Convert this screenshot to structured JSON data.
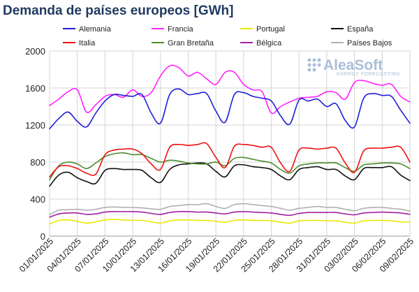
{
  "chart_data": {
    "type": "line",
    "title": "Demanda de países europeos [GWh]",
    "ylim": [
      0,
      2000
    ],
    "yticks": [
      0,
      400,
      800,
      1200,
      1600,
      2000
    ],
    "x_tick_labels": [
      "01/01/2025",
      "04/01/2025",
      "07/01/2025",
      "10/01/2025",
      "13/01/2025",
      "16/01/2025",
      "19/01/2025",
      "22/01/2025",
      "25/01/2025",
      "28/01/2025",
      "31/01/2025",
      "03/02/2025",
      "06/02/2025",
      "09/02/2025"
    ],
    "x_days": [
      1,
      2,
      3,
      4,
      5,
      6,
      7,
      8,
      9,
      10,
      11,
      12,
      13,
      14,
      15,
      16,
      17,
      18,
      19,
      20,
      21,
      22,
      23,
      24,
      25,
      26,
      27,
      28,
      29,
      30,
      31,
      32,
      33,
      34,
      35,
      36,
      37,
      38,
      39,
      40
    ],
    "watermark": {
      "main": "AleaSoft",
      "sub": "ENERGY FORECASTING"
    },
    "series": [
      {
        "name": "Alemania",
        "color": "#1f1fd6",
        "values": [
          1160,
          1270,
          1340,
          1240,
          1180,
          1330,
          1460,
          1530,
          1520,
          1510,
          1530,
          1330,
          1220,
          1530,
          1590,
          1530,
          1540,
          1540,
          1350,
          1230,
          1530,
          1550,
          1510,
          1490,
          1460,
          1300,
          1210,
          1470,
          1460,
          1480,
          1400,
          1430,
          1250,
          1180,
          1490,
          1540,
          1520,
          1510,
          1360,
          1220
        ]
      },
      {
        "name": "Francia",
        "color": "#ff22ff",
        "values": [
          1410,
          1480,
          1560,
          1580,
          1340,
          1420,
          1510,
          1530,
          1500,
          1580,
          1510,
          1550,
          1730,
          1840,
          1820,
          1730,
          1770,
          1700,
          1640,
          1770,
          1770,
          1640,
          1580,
          1560,
          1330,
          1400,
          1450,
          1490,
          1500,
          1510,
          1560,
          1550,
          1480,
          1660,
          1680,
          1650,
          1630,
          1640,
          1510,
          1450
        ]
      },
      {
        "name": "Portugal",
        "color": "#e8e800",
        "values": [
          130,
          170,
          175,
          160,
          140,
          155,
          175,
          180,
          175,
          170,
          170,
          155,
          140,
          165,
          175,
          175,
          170,
          170,
          160,
          150,
          170,
          175,
          170,
          170,
          165,
          150,
          140,
          165,
          170,
          170,
          165,
          165,
          150,
          140,
          165,
          170,
          170,
          165,
          155,
          150
        ]
      },
      {
        "name": "España",
        "color": "#111111",
        "values": [
          540,
          660,
          690,
          630,
          590,
          570,
          710,
          730,
          720,
          720,
          710,
          630,
          580,
          720,
          770,
          780,
          790,
          780,
          700,
          640,
          760,
          770,
          750,
          740,
          720,
          650,
          610,
          720,
          740,
          750,
          720,
          720,
          650,
          610,
          730,
          740,
          740,
          750,
          660,
          600
        ]
      },
      {
        "name": "Italia",
        "color": "#ee1111",
        "values": [
          640,
          750,
          760,
          730,
          680,
          670,
          880,
          930,
          940,
          940,
          890,
          780,
          720,
          960,
          990,
          980,
          990,
          1000,
          850,
          740,
          970,
          990,
          980,
          960,
          960,
          790,
          700,
          930,
          950,
          940,
          950,
          950,
          790,
          690,
          920,
          950,
          950,
          960,
          960,
          800
        ]
      },
      {
        "name": "Gran Bretaña",
        "color": "#4d8b2e",
        "values": [
          610,
          760,
          800,
          780,
          730,
          790,
          860,
          890,
          900,
          880,
          880,
          840,
          800,
          820,
          810,
          790,
          780,
          780,
          800,
          760,
          840,
          850,
          830,
          810,
          790,
          720,
          680,
          760,
          780,
          790,
          790,
          790,
          740,
          700,
          770,
          780,
          790,
          790,
          780,
          730
        ]
      },
      {
        "name": "Bélgica",
        "color": "#a020a0",
        "values": [
          205,
          240,
          250,
          250,
          235,
          240,
          260,
          265,
          265,
          265,
          260,
          245,
          235,
          255,
          265,
          265,
          260,
          260,
          250,
          240,
          260,
          265,
          260,
          255,
          250,
          235,
          225,
          245,
          255,
          255,
          255,
          255,
          240,
          230,
          250,
          255,
          260,
          255,
          250,
          235
        ]
      },
      {
        "name": "Países Bajos",
        "color": "#b0b0b0",
        "values": [
          230,
          280,
          285,
          290,
          280,
          290,
          310,
          315,
          310,
          310,
          305,
          295,
          290,
          320,
          330,
          340,
          340,
          350,
          320,
          300,
          340,
          350,
          340,
          330,
          320,
          300,
          280,
          300,
          310,
          320,
          310,
          310,
          290,
          275,
          300,
          310,
          310,
          300,
          290,
          270
        ]
      }
    ]
  }
}
